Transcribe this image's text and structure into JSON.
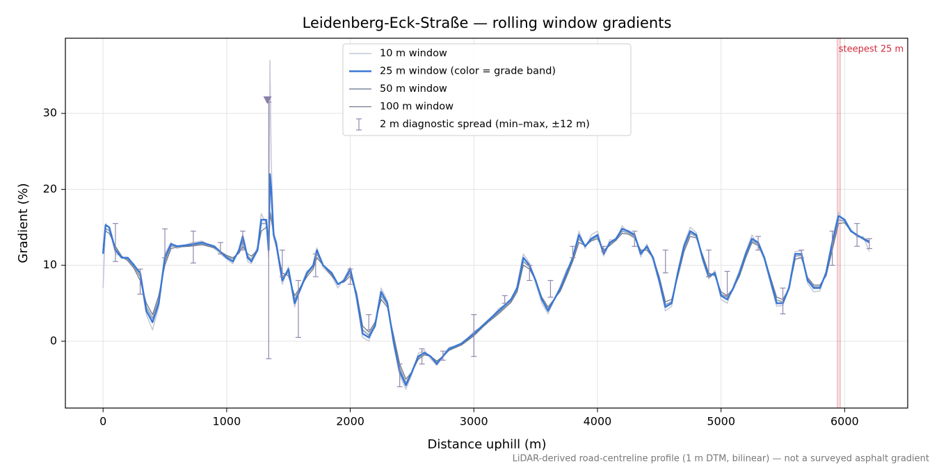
{
  "chart_data": {
    "type": "line",
    "title": "Leidenberg-Eck-Straße — rolling window gradients",
    "x_label": "Distance uphill (m)",
    "y_label": "Gradient (%)",
    "footnote": "LiDAR-derived road-centreline profile (1 m DTM, bilinear) — not a surveyed asphalt gradient",
    "xlim": [
      -305,
      6510
    ],
    "ylim": [
      -8.8,
      39.9
    ],
    "xticks": [
      0,
      1000,
      2000,
      3000,
      4000,
      5000,
      6000
    ],
    "yticks": [
      0,
      10,
      20,
      30
    ],
    "grid": true,
    "legend": "upper center",
    "x": [
      0,
      20,
      50,
      100,
      150,
      200,
      250,
      300,
      350,
      400,
      450,
      500,
      550,
      600,
      700,
      800,
      900,
      1000,
      1050,
      1100,
      1130,
      1170,
      1200,
      1250,
      1280,
      1320,
      1340,
      1350,
      1360,
      1380,
      1400,
      1450,
      1500,
      1550,
      1600,
      1650,
      1700,
      1730,
      1780,
      1850,
      1900,
      1950,
      2000,
      2050,
      2100,
      2150,
      2200,
      2250,
      2300,
      2350,
      2400,
      2450,
      2500,
      2550,
      2600,
      2650,
      2700,
      2750,
      2800,
      2900,
      3000,
      3100,
      3200,
      3300,
      3350,
      3400,
      3450,
      3500,
      3550,
      3600,
      3700,
      3750,
      3800,
      3850,
      3900,
      3950,
      4000,
      4050,
      4100,
      4150,
      4200,
      4250,
      4300,
      4350,
      4400,
      4450,
      4500,
      4550,
      4600,
      4650,
      4700,
      4750,
      4800,
      4850,
      4900,
      4950,
      5000,
      5050,
      5100,
      5150,
      5200,
      5250,
      5300,
      5350,
      5400,
      5450,
      5500,
      5550,
      5600,
      5650,
      5700,
      5750,
      5800,
      5850,
      5900,
      5950,
      6000,
      6050,
      6100,
      6150,
      6200
    ],
    "series": [
      {
        "name": "10 m window",
        "color": "#c4c7d7",
        "width": 1.5,
        "values": [
          7,
          15.5,
          14.8,
          11.5,
          11.2,
          10.6,
          10.2,
          8.5,
          3.5,
          1.5,
          4.5,
          11.5,
          13,
          12.2,
          12.9,
          13.2,
          12.2,
          10.8,
          10.2,
          12.3,
          14,
          10.5,
          10.2,
          12.5,
          16.8,
          15.5,
          11,
          37,
          24,
          13.5,
          12.5,
          7.5,
          9.8,
          4.5,
          7.2,
          9.3,
          9.6,
          12.3,
          9.7,
          8.6,
          7,
          8.3,
          9.8,
          5.5,
          0.5,
          0,
          2.3,
          7,
          5.3,
          -0.5,
          -4.5,
          -6.3,
          -4.3,
          -1.6,
          -1.2,
          -2.3,
          -3.2,
          -1.8,
          -0.8,
          -0.5,
          1.3,
          2.2,
          4.3,
          5.2,
          7.3,
          11.5,
          10.3,
          7.6,
          5,
          3.6,
          7.3,
          9.4,
          10.6,
          14.5,
          12.2,
          14,
          14.5,
          11.2,
          13.4,
          13.2,
          15.2,
          14.2,
          14.3,
          11.1,
          12.8,
          10.6,
          7.6,
          4,
          4.6,
          9.3,
          12.8,
          15,
          14.3,
          10.6,
          8.2,
          9.3,
          5.5,
          5,
          7.3,
          9.4,
          11.8,
          14,
          12.6,
          10.7,
          7.6,
          4.6,
          4.7,
          7.4,
          11.8,
          11.9,
          7.6,
          6.5,
          6.6,
          9.3,
          13.4,
          17,
          15.6,
          14.8,
          13.7,
          13.8,
          11.8
        ]
      },
      {
        "name": "25 m window (color = grade band)",
        "color": "#3a78d4",
        "width": 2.5,
        "values": [
          11.5,
          15.3,
          15,
          12,
          11,
          11,
          10,
          9,
          4,
          2.5,
          5,
          11,
          12.8,
          12.5,
          12.7,
          13,
          12.5,
          11,
          10.5,
          12,
          13.8,
          11,
          10.5,
          12,
          16,
          16,
          12,
          22,
          20,
          14,
          13,
          8,
          9.5,
          5,
          7,
          9,
          10,
          12,
          10,
          9,
          7.5,
          8,
          9.5,
          6,
          1,
          0.5,
          2,
          6.5,
          5,
          0,
          -4,
          -5.8,
          -4,
          -2,
          -1.5,
          -2,
          -3,
          -2,
          -1,
          -0.3,
          1,
          2.5,
          4,
          5.5,
          7,
          11,
          10,
          8,
          5.5,
          4,
          7,
          9,
          11,
          14,
          12.5,
          13.5,
          14,
          11.5,
          13,
          13.5,
          14.8,
          14.5,
          14,
          11.5,
          12.5,
          11,
          8,
          4.5,
          5,
          9,
          12.5,
          14.5,
          14,
          11,
          8.5,
          9,
          6,
          5.5,
          7,
          9,
          11.5,
          13.5,
          13,
          11,
          8,
          5,
          5,
          7,
          11.5,
          11.5,
          8,
          7,
          7,
          9,
          13,
          16.5,
          16,
          14.5,
          14,
          13.5,
          13
        ]
      },
      {
        "name": "50 m window",
        "color": "#9aa5b5",
        "width": 2,
        "values": [
          12,
          14.8,
          14.6,
          12.2,
          11,
          10.8,
          9.8,
          8.5,
          4.5,
          3,
          5.5,
          10.5,
          12.5,
          12.5,
          12.6,
          12.8,
          12.4,
          11.2,
          10.8,
          11.8,
          13.2,
          11.2,
          10.8,
          12.2,
          15.5,
          15.5,
          13,
          17,
          16.5,
          14,
          12.8,
          8.5,
          9,
          5.5,
          7.2,
          8.8,
          9.8,
          11.5,
          10,
          8.8,
          7.5,
          8,
          9,
          6.2,
          1.5,
          0.8,
          2.2,
          6,
          4.8,
          0.3,
          -3.5,
          -5.5,
          -4,
          -2.2,
          -1.6,
          -2,
          -2.8,
          -2,
          -1.1,
          -0.4,
          0.8,
          2.4,
          3.8,
          5.3,
          6.8,
          10.5,
          9.8,
          8,
          5.6,
          4.2,
          6.8,
          8.8,
          10.8,
          13.5,
          12.5,
          13.3,
          13.8,
          11.8,
          12.8,
          13.4,
          14.5,
          14.3,
          13.8,
          11.8,
          12.3,
          11,
          8.2,
          4.8,
          5.2,
          8.8,
          12.2,
          14.2,
          13.8,
          11.2,
          8.8,
          8.8,
          6.2,
          5.8,
          7,
          8.8,
          11.2,
          13.2,
          12.8,
          11,
          8.2,
          5.4,
          5.2,
          7,
          11.2,
          11.3,
          8.2,
          7.2,
          7.2,
          8.8,
          12.5,
          16,
          15.8,
          14.5,
          13.9,
          13.5,
          13.1
        ]
      },
      {
        "name": "100 m window",
        "color": "#6f7a8b",
        "width": 1.3,
        "values": [
          12.5,
          14.5,
          14.2,
          12.5,
          11.2,
          10.6,
          9.6,
          8,
          5,
          3.5,
          6,
          10,
          12.2,
          12.4,
          12.5,
          12.7,
          12.3,
          11.3,
          11,
          11.6,
          12.5,
          11.5,
          11.2,
          12,
          14.5,
          15,
          14,
          16.5,
          16,
          14.5,
          12.5,
          9,
          8.6,
          6,
          7.2,
          8.5,
          9.5,
          11,
          10,
          8.6,
          7.6,
          7.8,
          8.6,
          6.5,
          2,
          1.2,
          2.5,
          5.5,
          4.5,
          0.8,
          -3,
          -5,
          -4,
          -2.4,
          -1.8,
          -2,
          -2.6,
          -2,
          -1.2,
          -0.5,
          0.7,
          2.3,
          3.6,
          5.1,
          6.5,
          10,
          9.5,
          8,
          5.8,
          4.5,
          6.6,
          8.5,
          10.5,
          13,
          12.6,
          13.2,
          13.5,
          12,
          12.6,
          13.3,
          14.2,
          14.1,
          13.6,
          12,
          12,
          11,
          8.5,
          5.2,
          5.5,
          8.5,
          11.8,
          13.8,
          13.6,
          11.4,
          9,
          8.6,
          6.5,
          6,
          7,
          8.6,
          11,
          13,
          12.6,
          11,
          8.4,
          5.8,
          5.5,
          7,
          10.8,
          11,
          8.4,
          7.4,
          7.4,
          8.6,
          12,
          15.5,
          15.6,
          14.5,
          14,
          13.6,
          13.2
        ]
      }
    ],
    "errorbars": {
      "name": "2 m diagnostic spread (min–max, ±12 m)",
      "color": "#8f86ad",
      "x": [
        100,
        300,
        500,
        730,
        950,
        1130,
        1340,
        1450,
        1580,
        1720,
        2000,
        2150,
        2400,
        2580,
        2750,
        3000,
        3250,
        3450,
        3620,
        3800,
        4050,
        4300,
        4550,
        4900,
        5050,
        5300,
        5500,
        5650,
        5900,
        6100,
        6200
      ],
      "low": [
        10.5,
        6.2,
        11,
        10.3,
        11.5,
        12,
        -2.3,
        8.5,
        0.5,
        8.5,
        7.5,
        1.5,
        -6,
        -3,
        -2.5,
        -2,
        5,
        8,
        5.8,
        11,
        11.8,
        12.5,
        9,
        8.5,
        6,
        12,
        3.6,
        11,
        10,
        12.5,
        12.2
      ],
      "high": [
        15.5,
        9.5,
        14.8,
        14.5,
        13,
        14.5,
        31.5,
        12,
        8,
        11.5,
        9.5,
        3.5,
        -3,
        -1,
        -1.3,
        3.5,
        6,
        10,
        8,
        12.5,
        12.5,
        14.5,
        12,
        12,
        9.2,
        13.8,
        7,
        12,
        14.5,
        15.5,
        13.5
      ]
    },
    "marker": {
      "x": 1330,
      "y": 31.7,
      "color": "#8a7fa8"
    },
    "highlight": {
      "x": [
        5940,
        5965
      ],
      "label": "steepest 25 m",
      "color": "#d02a3a"
    }
  }
}
